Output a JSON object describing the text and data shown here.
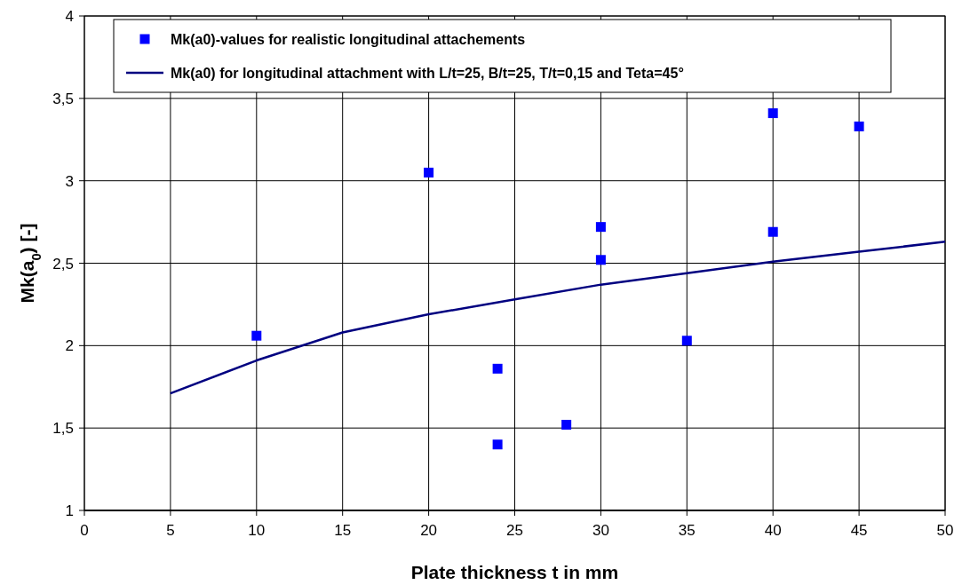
{
  "chart_data": {
    "type": "scatter",
    "xlabel": "Plate thickness t in mm",
    "ylabel": "Mk(a$_{0}$) [-]",
    "xlim": [
      0,
      50
    ],
    "xticks": [
      0,
      5,
      10,
      15,
      20,
      25,
      30,
      35,
      40,
      45,
      50
    ],
    "ylim": [
      1,
      4
    ],
    "yticks": [
      1,
      {
        "value": 1.5,
        "label": "1,5"
      },
      2,
      {
        "value": 2.5,
        "label": "2,5"
      },
      3,
      {
        "value": 3.5,
        "label": "3,5"
      },
      4
    ],
    "grid": true,
    "legend": "top left",
    "series": [
      {
        "name": "Mk(a0)-values for realistic longitudinal attachements",
        "marker": "square",
        "color": "#0000ff",
        "x": [
          10,
          20,
          24,
          24,
          28,
          30,
          30,
          35,
          40,
          40,
          45
        ],
        "values": [
          2.06,
          3.05,
          1.86,
          1.4,
          1.52,
          2.72,
          2.52,
          2.03,
          3.41,
          2.69,
          3.33
        ]
      },
      {
        "name": "Mk(a0) for longitudinal attachment with L/t=25, B/t=25, T/t=0,15 and Teta=45°",
        "type": "line",
        "marker": "none",
        "line_style": "solid",
        "color": "#000080",
        "x": [
          5,
          10,
          15,
          20,
          25,
          30,
          35,
          40,
          45,
          50
        ],
        "values": [
          1.71,
          1.91,
          2.08,
          2.19,
          2.28,
          2.37,
          2.44,
          2.51,
          2.57,
          2.63
        ]
      }
    ]
  }
}
